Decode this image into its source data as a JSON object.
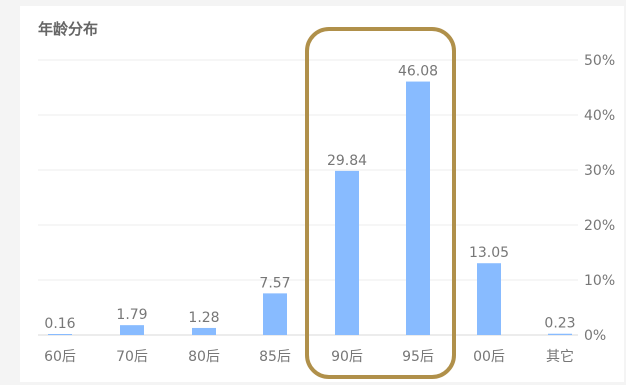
{
  "chart_data": {
    "type": "bar",
    "title": "年龄分布",
    "categories": [
      "60后",
      "70后",
      "80后",
      "85后",
      "90后",
      "95后",
      "00后",
      "其它"
    ],
    "values": [
      0.16,
      1.79,
      1.28,
      7.57,
      29.84,
      46.08,
      13.05,
      0.23
    ],
    "value_labels": [
      "0.16",
      "1.79",
      "1.28",
      "7.57",
      "29.84",
      "46.08",
      "13.05",
      "0.23"
    ],
    "y_ticks": [
      "0%",
      "10%",
      "20%",
      "30%",
      "40%",
      "50%"
    ],
    "ylim": [
      0,
      50
    ],
    "y_unit": "%",
    "y_axis_side": "right",
    "grid": true,
    "highlight": {
      "categories": [
        "90后",
        "95后"
      ],
      "color": "#b0904a"
    },
    "bar_color": "#88bbff"
  }
}
